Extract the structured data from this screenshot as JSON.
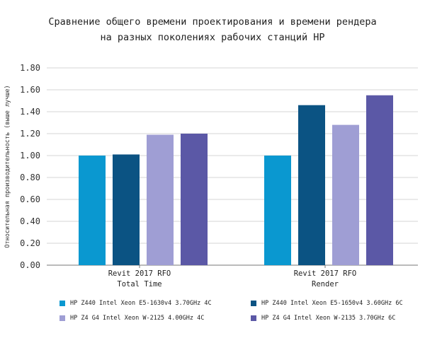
{
  "chart_data": {
    "type": "bar",
    "title_lines": [
      "Сравнение общего времени проектирования и времени рендера",
      "на разных поколениях рабочих станций HP"
    ],
    "ylabel": "Относительная производительность (выше лучше)",
    "xlabel": "",
    "ylim": [
      0,
      1.8
    ],
    "yticks": [
      "0.00",
      "0.20",
      "0.40",
      "0.60",
      "0.80",
      "1.00",
      "1.20",
      "1.40",
      "1.60",
      "1.80"
    ],
    "grid": true,
    "legend_position": "bottom",
    "categories": [
      [
        "Revit 2017 RFO",
        "Total Time"
      ],
      [
        "Revit 2017 RFO",
        "Render"
      ]
    ],
    "series": [
      {
        "name": "HP Z440 Intel Xeon E5-1630v4 3.70GHz 4C",
        "color": "#0a98d0",
        "values": [
          1.0,
          1.0
        ]
      },
      {
        "name": "HP Z440 Intel Xeon E5-1650v4 3.60GHz 6C",
        "color": "#0b5383",
        "values": [
          1.01,
          1.46
        ]
      },
      {
        "name": "HP Z4 G4 Intel Xeon W-2125 4.00GHz 4C",
        "color": "#9f9ed4",
        "values": [
          1.19,
          1.28
        ]
      },
      {
        "name": "HP Z4 G4 Intel Xeon W-2135 3.70GHz 6C",
        "color": "#5b58a6",
        "values": [
          1.2,
          1.55
        ]
      }
    ]
  }
}
